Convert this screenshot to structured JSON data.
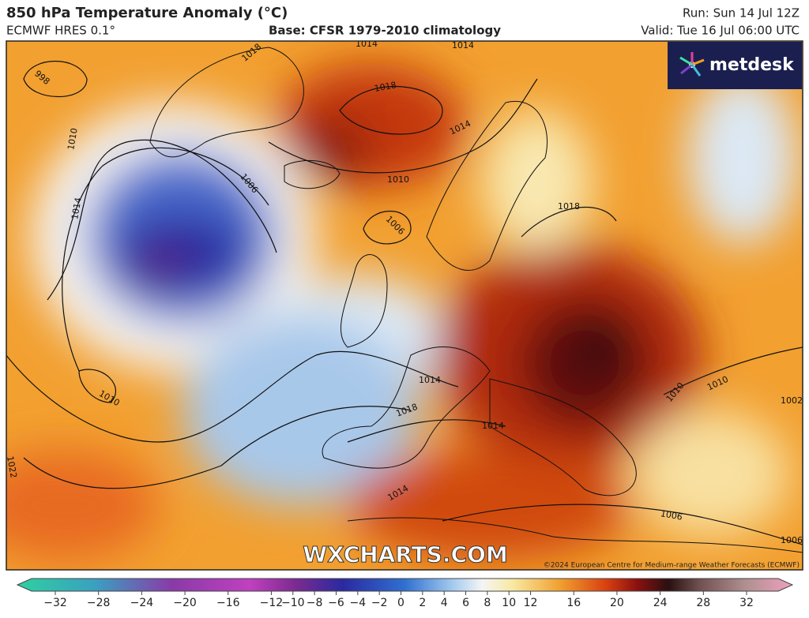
{
  "header": {
    "title": "850 hPa Temperature Anomaly (°C)",
    "model": "ECMWF HRES 0.1°",
    "base": "Base: CFSR 1979-2010 climatology",
    "run": "Run: Sun 14 Jul 12Z",
    "valid": "Valid: Tue 16 Jul 06:00 UTC"
  },
  "map": {
    "logo": "metdesk",
    "watermark": "WXCHARTS.COM",
    "copyright": "©2024 European Centre for Medium-range Weather Forecasts (ECMWF)",
    "isobar_labels": [
      "998",
      "1010",
      "1014",
      "1018",
      "1006",
      "1018",
      "1014",
      "1010",
      "1006",
      "1014",
      "1014",
      "1010",
      "1014",
      "1018",
      "1014",
      "1022",
      "1014",
      "1006",
      "1010",
      "1010",
      "1002",
      "1006",
      "1018"
    ]
  },
  "colorbar": {
    "ticks": [
      {
        "value": -32,
        "label": "−32"
      },
      {
        "value": -28,
        "label": "−28"
      },
      {
        "value": -24,
        "label": "−24"
      },
      {
        "value": -20,
        "label": "−20"
      },
      {
        "value": -16,
        "label": "−16"
      },
      {
        "value": -12,
        "label": "−12"
      },
      {
        "value": -10,
        "label": "−10"
      },
      {
        "value": -8,
        "label": "−8"
      },
      {
        "value": -6,
        "label": "−6"
      },
      {
        "value": -4,
        "label": "−4"
      },
      {
        "value": -2,
        "label": "−2"
      },
      0,
      2,
      4,
      6,
      8,
      10,
      12,
      16,
      20,
      24,
      28,
      32
    ]
  }
}
